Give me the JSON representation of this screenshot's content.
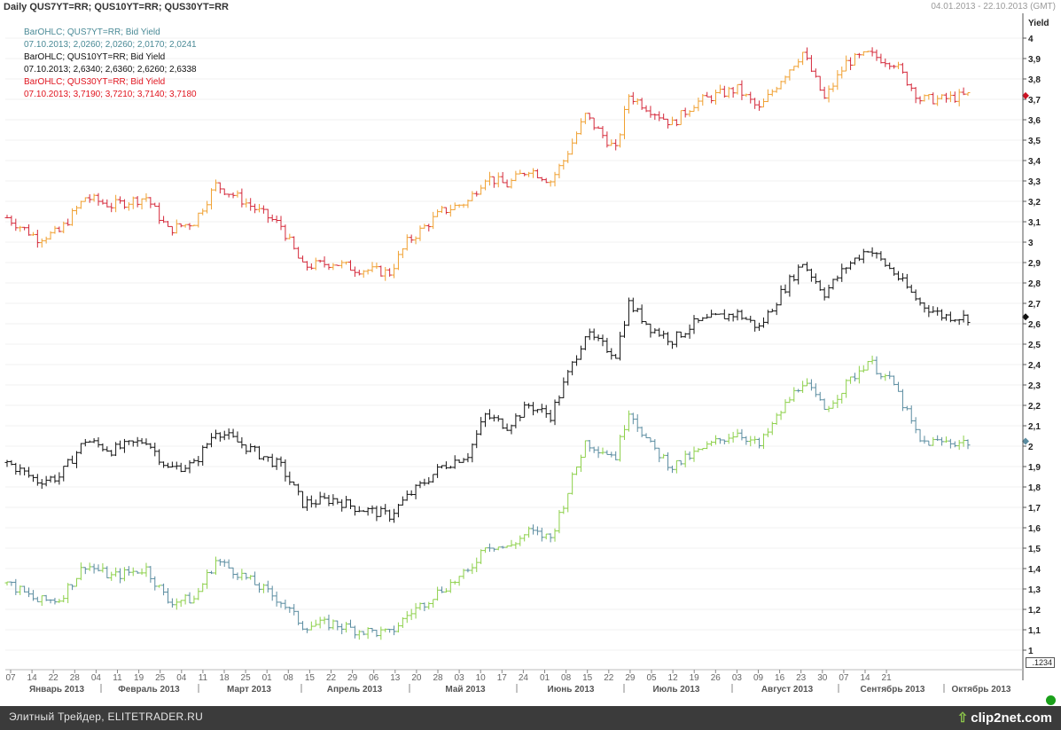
{
  "header": {
    "title": "Daily QUS7YT=RR; QUS10YT=RR; QUS30YT=RR",
    "range": "04.01.2013 - 22.10.2013 (GMT)"
  },
  "legend": [
    {
      "title": "BarOHLC; QUS7YT=RR; Bid Yield",
      "values": "07.10.2013; 2,0260; 2,0260; 2,0170; 2,0241",
      "color": "#4a8a96"
    },
    {
      "title": "BarOHLC; QUS10YT=RR; Bid Yield",
      "values": "07.10.2013; 2,6340; 2,6360; 2,6260; 2,6338",
      "color": "#111111"
    },
    {
      "title": "BarOHLC; QUS30YT=RR; Bid Yield",
      "values": "07.10.2013; 3,7190; 3,7210; 3,7140; 3,7180",
      "color": "#e0141e"
    }
  ],
  "y_axis_label": "Yield",
  "price_box": ".1234",
  "footer": {
    "text": "Элитный Трейдер, ELITETRADER.RU",
    "logo": "clip2net.com"
  },
  "chart_data": {
    "type": "ohlc",
    "ylim": [
      0.95,
      4.05
    ],
    "y_ticks": [
      "1",
      "1,1",
      "1,2",
      "1,3",
      "1,4",
      "1,5",
      "1,6",
      "1,7",
      "1,8",
      "1,9",
      "2",
      "2,1",
      "2,2",
      "2,3",
      "2,4",
      "2,5",
      "2,6",
      "2,7",
      "2,8",
      "2,9",
      "3",
      "3,1",
      "3,2",
      "3,3",
      "3,4",
      "3,5",
      "3,6",
      "3,7",
      "3,8",
      "3,9",
      "4"
    ],
    "y_tick_values": [
      1,
      1.1,
      1.2,
      1.3,
      1.4,
      1.5,
      1.6,
      1.7,
      1.8,
      1.9,
      2.0,
      2.1,
      2.2,
      2.3,
      2.4,
      2.5,
      2.6,
      2.7,
      2.8,
      2.9,
      3.0,
      3.1,
      3.2,
      3.3,
      3.4,
      3.5,
      3.6,
      3.7,
      3.8,
      3.9,
      4.0
    ],
    "x_day_ticks": [
      "07",
      "14",
      "22",
      "28",
      "04",
      "11",
      "19",
      "25",
      "04",
      "11",
      "18",
      "25",
      "01",
      "08",
      "15",
      "22",
      "29",
      "06",
      "13",
      "20",
      "28",
      "03",
      "10",
      "17",
      "24",
      "01",
      "08",
      "15",
      "22",
      "29",
      "05",
      "12",
      "19",
      "26",
      "03",
      "09",
      "16",
      "23",
      "30",
      "07",
      "14",
      "21"
    ],
    "x_month_labels": [
      "Январь 2013",
      "Февраль 2013",
      "Март 2013",
      "Апрель 2013",
      "Май 2013",
      "Июнь 2013",
      "Июль 2013",
      "Август 2013",
      "Сентябрь 2013",
      "Октябрь 2013"
    ],
    "series": [
      {
        "name": "QUS30YT=RR",
        "up_color": "#f0a030",
        "down_color": "#d4283a",
        "knots": [
          [
            0,
            3.12
          ],
          [
            7,
            3.02
          ],
          [
            12,
            3.05
          ],
          [
            18,
            3.22
          ],
          [
            24,
            3.18
          ],
          [
            32,
            3.22
          ],
          [
            37,
            3.06
          ],
          [
            43,
            3.1
          ],
          [
            48,
            3.28
          ],
          [
            53,
            3.22
          ],
          [
            63,
            3.08
          ],
          [
            68,
            2.88
          ],
          [
            75,
            2.9
          ],
          [
            80,
            2.87
          ],
          [
            88,
            2.85
          ],
          [
            92,
            3.0
          ],
          [
            100,
            3.15
          ],
          [
            106,
            3.2
          ],
          [
            110,
            3.32
          ],
          [
            115,
            3.28
          ],
          [
            120,
            3.36
          ],
          [
            125,
            3.3
          ],
          [
            128,
            3.4
          ],
          [
            133,
            3.62
          ],
          [
            140,
            3.45
          ],
          [
            143,
            3.72
          ],
          [
            148,
            3.65
          ],
          [
            153,
            3.58
          ],
          [
            158,
            3.68
          ],
          [
            163,
            3.72
          ],
          [
            168,
            3.75
          ],
          [
            173,
            3.65
          ],
          [
            178,
            3.8
          ],
          [
            183,
            3.93
          ],
          [
            188,
            3.7
          ],
          [
            193,
            3.88
          ],
          [
            198,
            3.92
          ],
          [
            204,
            3.88
          ],
          [
            210,
            3.7
          ],
          [
            215,
            3.7
          ],
          [
            221,
            3.72
          ]
        ]
      },
      {
        "name": "QUS10YT=RR",
        "up_color": "#111111",
        "down_color": "#111111",
        "knots": [
          [
            0,
            1.92
          ],
          [
            7,
            1.83
          ],
          [
            12,
            1.85
          ],
          [
            18,
            2.03
          ],
          [
            24,
            1.98
          ],
          [
            32,
            2.03
          ],
          [
            37,
            1.89
          ],
          [
            43,
            1.91
          ],
          [
            48,
            2.08
          ],
          [
            53,
            2.02
          ],
          [
            63,
            1.9
          ],
          [
            68,
            1.72
          ],
          [
            75,
            1.74
          ],
          [
            80,
            1.7
          ],
          [
            88,
            1.66
          ],
          [
            92,
            1.75
          ],
          [
            100,
            1.9
          ],
          [
            106,
            1.96
          ],
          [
            110,
            2.15
          ],
          [
            115,
            2.1
          ],
          [
            120,
            2.2
          ],
          [
            125,
            2.15
          ],
          [
            128,
            2.3
          ],
          [
            133,
            2.55
          ],
          [
            140,
            2.45
          ],
          [
            143,
            2.7
          ],
          [
            148,
            2.58
          ],
          [
            153,
            2.52
          ],
          [
            158,
            2.6
          ],
          [
            163,
            2.63
          ],
          [
            168,
            2.65
          ],
          [
            173,
            2.58
          ],
          [
            178,
            2.75
          ],
          [
            183,
            2.9
          ],
          [
            188,
            2.75
          ],
          [
            193,
            2.88
          ],
          [
            198,
            2.97
          ],
          [
            204,
            2.85
          ],
          [
            210,
            2.7
          ],
          [
            215,
            2.64
          ],
          [
            221,
            2.63
          ]
        ]
      },
      {
        "name": "QUS7YT=RR",
        "up_color": "#8dd04a",
        "down_color": "#5a8ca0",
        "knots": [
          [
            0,
            1.33
          ],
          [
            7,
            1.24
          ],
          [
            12,
            1.25
          ],
          [
            18,
            1.42
          ],
          [
            24,
            1.36
          ],
          [
            32,
            1.4
          ],
          [
            37,
            1.24
          ],
          [
            43,
            1.25
          ],
          [
            48,
            1.44
          ],
          [
            53,
            1.38
          ],
          [
            63,
            1.24
          ],
          [
            68,
            1.12
          ],
          [
            75,
            1.13
          ],
          [
            80,
            1.1
          ],
          [
            88,
            1.08
          ],
          [
            92,
            1.17
          ],
          [
            100,
            1.3
          ],
          [
            106,
            1.38
          ],
          [
            110,
            1.52
          ],
          [
            115,
            1.5
          ],
          [
            120,
            1.58
          ],
          [
            125,
            1.55
          ],
          [
            128,
            1.72
          ],
          [
            133,
            2.02
          ],
          [
            140,
            1.95
          ],
          [
            143,
            2.18
          ],
          [
            148,
            2.0
          ],
          [
            153,
            1.9
          ],
          [
            158,
            1.96
          ],
          [
            163,
            2.02
          ],
          [
            168,
            2.07
          ],
          [
            173,
            2.0
          ],
          [
            178,
            2.17
          ],
          [
            183,
            2.32
          ],
          [
            188,
            2.18
          ],
          [
            193,
            2.3
          ],
          [
            198,
            2.42
          ],
          [
            204,
            2.3
          ],
          [
            210,
            2.02
          ],
          [
            215,
            2.02
          ],
          [
            221,
            2.02
          ]
        ]
      }
    ],
    "last_markers": [
      {
        "value": 3.718,
        "color": "#cc1122"
      },
      {
        "value": 2.6338,
        "color": "#111111"
      },
      {
        "value": 2.0241,
        "color": "#5a8ca0"
      }
    ]
  }
}
